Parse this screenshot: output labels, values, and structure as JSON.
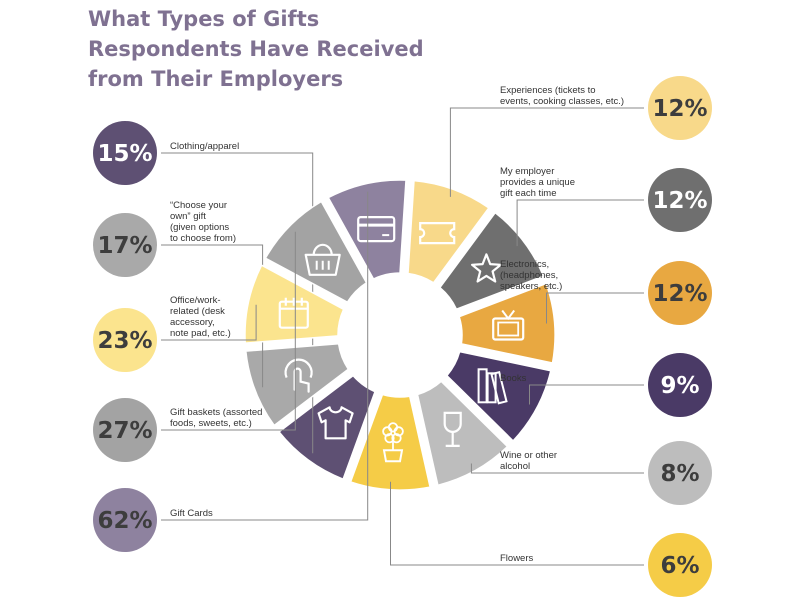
{
  "title_lines": [
    "What Types of Gifts",
    "Respondents Have Received",
    "from Their Employers"
  ],
  "chart_data": {
    "type": "pie",
    "title": "What Types of Gifts Respondents Have Received from Their Employers",
    "value_unit": "%",
    "categories": [
      "Experiences (tickets to events, cooking classes, etc.)",
      "My employer provides a unique gift each time",
      "Electronics, (headphones, speakers, etc.)",
      "Books",
      "Wine or other alcohol",
      "Flowers",
      "Clothing/apparel",
      "“Choose your own” gift (given options to choose from)",
      "Office/work-related (desk accessory, note pad, etc.)",
      "Gift baskets (assorted foods, sweets, etc.)",
      "Gift Cards"
    ],
    "values": [
      12,
      12,
      12,
      9,
      8,
      6,
      15,
      17,
      23,
      27,
      62
    ],
    "items": [
      {
        "label_lines": [
          "Experiences (tickets to",
          "events, cooking classes, etc.)"
        ],
        "value": 12,
        "display": "12%",
        "color": "#f8d98a",
        "icon": "ticket-icon"
      },
      {
        "label_lines": [
          "My employer",
          "provides a unique",
          "gift each time"
        ],
        "value": 12,
        "display": "12%",
        "color": "#6f6f6f",
        "icon": "star-icon"
      },
      {
        "label_lines": [
          "Electronics,",
          "(headphones,",
          "speakers, etc.)"
        ],
        "value": 12,
        "display": "12%",
        "color": "#e8a841",
        "icon": "tv-icon"
      },
      {
        "label_lines": [
          "Books"
        ],
        "value": 9,
        "display": "9%",
        "color": "#4a3a66",
        "icon": "books-icon"
      },
      {
        "label_lines": [
          "Wine or other",
          "alcohol"
        ],
        "value": 8,
        "display": "8%",
        "color": "#bdbdbd",
        "icon": "wine-glass-icon"
      },
      {
        "label_lines": [
          "Flowers"
        ],
        "value": 6,
        "display": "6%",
        "color": "#f5cc47",
        "icon": "flower-pot-icon"
      },
      {
        "label_lines": [
          "Clothing/apparel"
        ],
        "value": 15,
        "display": "15%",
        "color": "#5e5073",
        "icon": "shirt-icon"
      },
      {
        "label_lines": [
          "“Choose your",
          "own” gift",
          "(given options",
          "to choose from)"
        ],
        "value": 17,
        "display": "17%",
        "color": "#a9a9a9",
        "icon": "hand-pointer-icon"
      },
      {
        "label_lines": [
          "Office/work-",
          "related (desk",
          "accessory,",
          "note pad, etc.)"
        ],
        "value": 23,
        "display": "23%",
        "color": "#fbe48e",
        "icon": "calendar-icon"
      },
      {
        "label_lines": [
          "Gift baskets (assorted",
          "foods, sweets, etc.)"
        ],
        "value": 27,
        "display": "27%",
        "color": "#a3a3a3",
        "icon": "basket-icon"
      },
      {
        "label_lines": [
          "Gift Cards"
        ],
        "value": 62,
        "display": "62%",
        "color": "#8e829f",
        "icon": "credit-card-icon"
      }
    ]
  }
}
